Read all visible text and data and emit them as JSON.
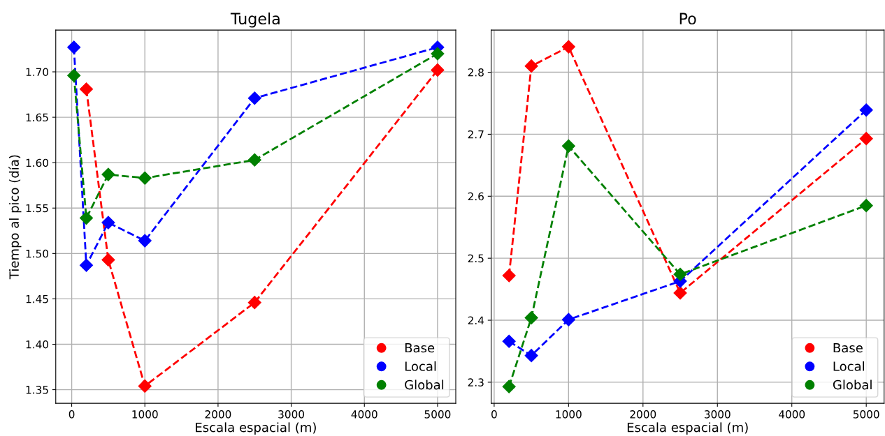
{
  "chart_data": [
    {
      "type": "line",
      "title": "Tugela",
      "xlabel": "Escala espacial (m)",
      "ylabel": "Tiempo al pico (día)",
      "xlim": [
        -218,
        5249
      ],
      "xticks": [
        0,
        1000,
        2000,
        3000,
        4000,
        5000
      ],
      "ylim": [
        1.335,
        1.746
      ],
      "yticks": [
        1.35,
        {
          "value": 1.4,
          "label": "1.40"
        },
        1.45,
        {
          "value": 1.5,
          "label": "1.50"
        },
        1.55,
        {
          "value": 1.6,
          "label": "1.60"
        },
        1.65,
        {
          "value": 1.7,
          "label": "1.70"
        }
      ],
      "grid": true,
      "legend": "bottom right",
      "marker": "diamond",
      "line_style": "dashed",
      "series": [
        {
          "name": "Base",
          "color": "#ff0000",
          "x": [
            200,
            500,
            1000,
            2500,
            5000
          ],
          "values": [
            1.681,
            1.493,
            1.354,
            1.446,
            1.702
          ]
        },
        {
          "name": "Local",
          "color": "#0000ff",
          "x": [
            30,
            200,
            500,
            1000,
            2500,
            5000
          ],
          "values": [
            1.727,
            1.487,
            1.534,
            1.514,
            1.671,
            1.727
          ]
        },
        {
          "name": "Global",
          "color": "#008000",
          "x": [
            30,
            200,
            500,
            1000,
            2500,
            5000
          ],
          "values": [
            1.696,
            1.539,
            1.587,
            1.583,
            1.603,
            1.72
          ]
        }
      ]
    },
    {
      "type": "line",
      "title": "Po",
      "xlabel": "Escala espacial (m)",
      "xlim": [
        -40,
        5240
      ],
      "xticks": [
        0,
        1000,
        2000,
        3000,
        4000,
        5000
      ],
      "ylim": [
        2.266,
        2.868
      ],
      "yticks": [
        2.3,
        2.4,
        2.5,
        2.6,
        2.7,
        2.8
      ],
      "grid": true,
      "legend": "bottom right",
      "marker": "diamond",
      "line_style": "dashed",
      "series": [
        {
          "name": "Base",
          "color": "#ff0000",
          "x": [
            200,
            500,
            1000,
            2500,
            5000
          ],
          "values": [
            2.472,
            2.81,
            2.841,
            2.444,
            2.693
          ]
        },
        {
          "name": "Local",
          "color": "#0000ff",
          "x": [
            200,
            500,
            1000,
            2500,
            5000
          ],
          "values": [
            2.366,
            2.343,
            2.401,
            2.463,
            2.739
          ]
        },
        {
          "name": "Global",
          "color": "#008000",
          "x": [
            200,
            500,
            1000,
            2500,
            5000
          ],
          "values": [
            2.293,
            2.404,
            2.681,
            2.474,
            2.585
          ]
        }
      ]
    }
  ]
}
